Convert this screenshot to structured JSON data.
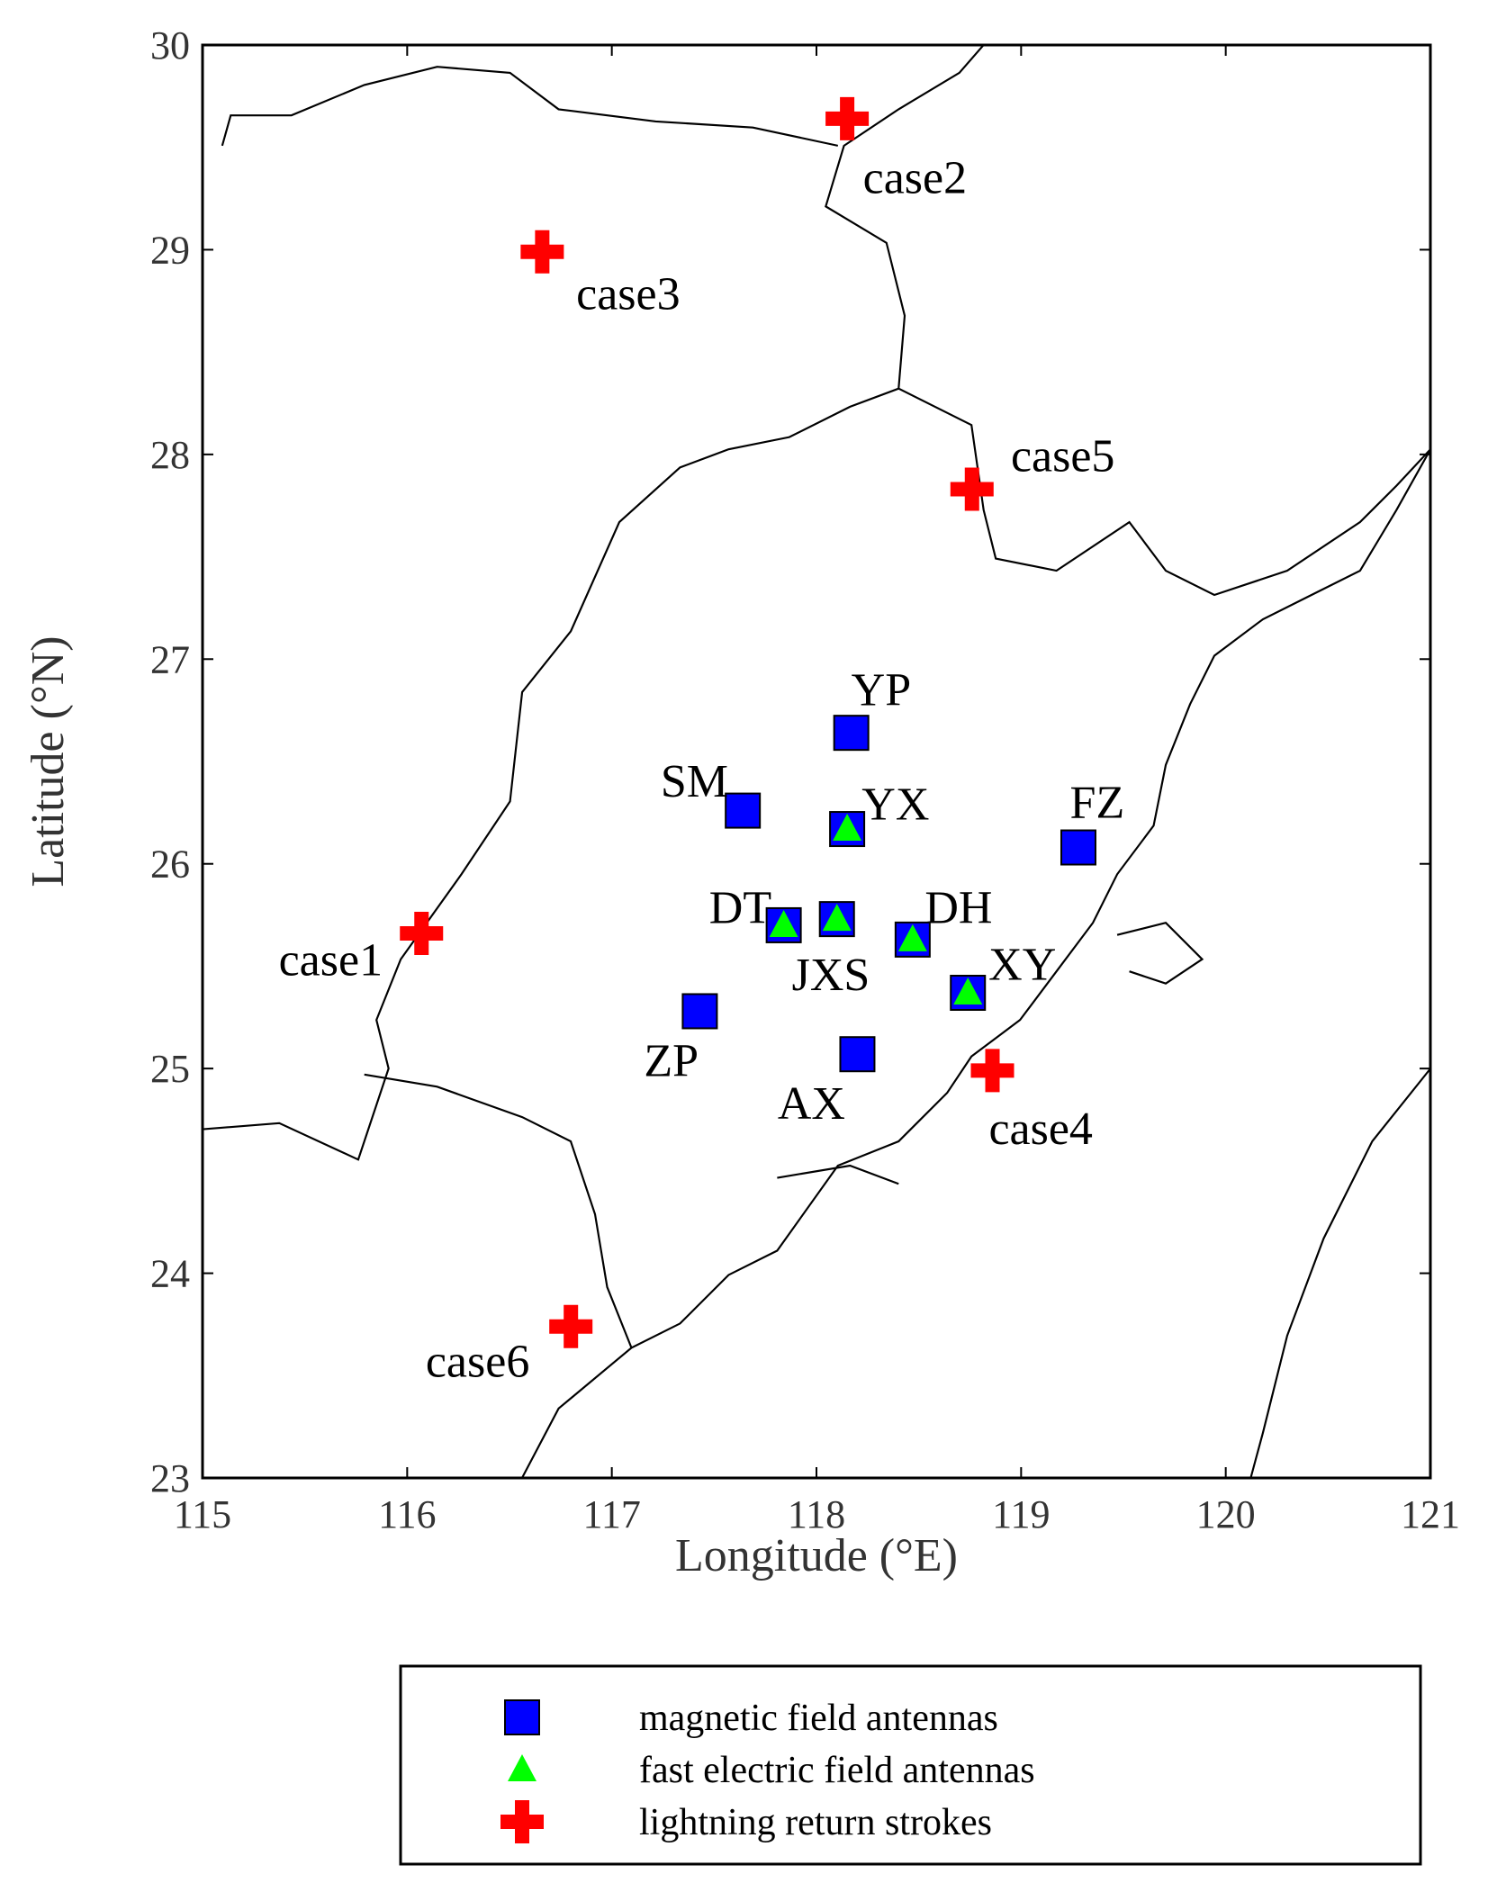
{
  "chart_data": {
    "type": "scatter",
    "xlabel": "Longitude (°E)",
    "ylabel": "Latitude (°N)",
    "xlim": [
      115,
      121
    ],
    "ylim": [
      23,
      30
    ],
    "xticks": [
      115,
      116,
      117,
      118,
      119,
      120,
      121
    ],
    "yticks": [
      23,
      24,
      25,
      26,
      27,
      28,
      29,
      30
    ],
    "series": [
      {
        "name": "magnetic field antennas",
        "color": "#0000ff",
        "marker": "square",
        "x": [
          118.17,
          117.64,
          118.15,
          119.28,
          117.84,
          118.1,
          118.47,
          118.74,
          117.43,
          118.2
        ],
        "values": [
          26.64,
          26.26,
          26.17,
          26.08,
          25.7,
          25.73,
          25.63,
          25.37,
          25.28,
          25.07
        ],
        "labels": [
          "YP",
          "SM",
          "YX",
          "FZ",
          "DT",
          "JXS",
          "DH",
          "XY",
          "ZP",
          "AX"
        ]
      },
      {
        "name": "fast electric field antennas",
        "color": "#00ff00",
        "marker": "triangle",
        "x": [
          118.15,
          117.84,
          118.1,
          118.47,
          118.74
        ],
        "values": [
          26.17,
          25.7,
          25.73,
          25.63,
          25.37
        ]
      },
      {
        "name": "lightning return strokes",
        "color": "#ff0000",
        "marker": "cross",
        "x": [
          118.15,
          116.66,
          118.76,
          116.07,
          118.86,
          116.8
        ],
        "values": [
          29.64,
          28.99,
          27.83,
          25.66,
          24.99,
          23.74
        ],
        "labels": [
          "case2",
          "case3",
          "case5",
          "case1",
          "case4",
          "case6"
        ]
      }
    ]
  }
}
